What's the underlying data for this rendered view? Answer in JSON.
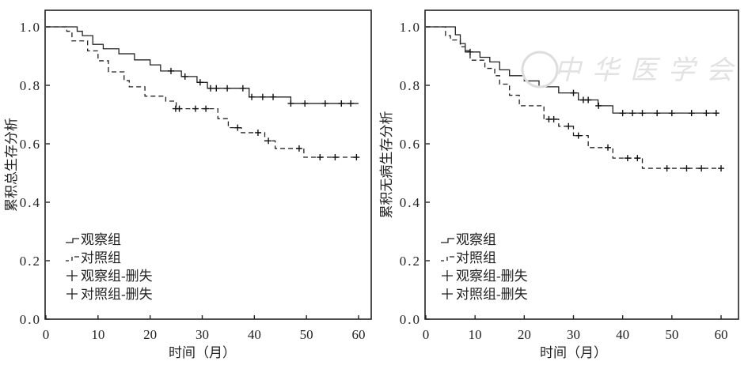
{
  "watermark": "中华医学会",
  "chart_data": [
    {
      "type": "line",
      "subtype": "kaplan-meier",
      "title": "",
      "xlabel": "时间（月）",
      "ylabel": "累积总生存分析",
      "xlim": [
        0,
        60
      ],
      "ylim": [
        0,
        1.0
      ],
      "xticks": [
        "0",
        "10",
        "20",
        "30",
        "40",
        "50",
        "60"
      ],
      "yticks": [
        "0.0",
        "0.2",
        "0.4",
        "0.6",
        "0.8",
        "1.0"
      ],
      "grid": false,
      "legend_position": "bottom-left",
      "legend": [
        "观察组",
        "对照组",
        "观察组-删失",
        "对照组-删失"
      ],
      "series": [
        {
          "name": "观察组",
          "style": "solid",
          "end": 60,
          "steps": [
            [
              0,
              1.0
            ],
            [
              6,
              0.985
            ],
            [
              7,
              0.97
            ],
            [
              9,
              0.94
            ],
            [
              11,
              0.925
            ],
            [
              14,
              0.908
            ],
            [
              17,
              0.887
            ],
            [
              20,
              0.87
            ],
            [
              22,
              0.849
            ],
            [
              26,
              0.83
            ],
            [
              29,
              0.81
            ],
            [
              31,
              0.79
            ],
            [
              39,
              0.76
            ],
            [
              47,
              0.738
            ]
          ],
          "censored": [
            [
              24,
              0.849
            ],
            [
              26.7,
              0.83
            ],
            [
              29.6,
              0.81
            ],
            [
              31.6,
              0.79
            ],
            [
              32.7,
              0.79
            ],
            [
              34.8,
              0.79
            ],
            [
              37.8,
              0.79
            ],
            [
              39.5,
              0.76
            ],
            [
              41.6,
              0.76
            ],
            [
              43.6,
              0.76
            ],
            [
              47,
              0.738
            ],
            [
              49.7,
              0.738
            ],
            [
              53.6,
              0.738
            ],
            [
              56.7,
              0.738
            ],
            [
              58.5,
              0.738
            ]
          ]
        },
        {
          "name": "对照组",
          "style": "dashed",
          "end": 60,
          "steps": [
            [
              0,
              1.0
            ],
            [
              4,
              0.985
            ],
            [
              5,
              0.952
            ],
            [
              8,
              0.918
            ],
            [
              10,
              0.884
            ],
            [
              12,
              0.846
            ],
            [
              15,
              0.816
            ],
            [
              16,
              0.795
            ],
            [
              19,
              0.763
            ],
            [
              23,
              0.746
            ],
            [
              25,
              0.72
            ],
            [
              33,
              0.686
            ],
            [
              35,
              0.655
            ],
            [
              37.5,
              0.638
            ],
            [
              42,
              0.61
            ],
            [
              44,
              0.584
            ],
            [
              49.5,
              0.554
            ]
          ],
          "censored": [
            [
              24.9,
              0.72
            ],
            [
              25.6,
              0.72
            ],
            [
              28.7,
              0.72
            ],
            [
              30.7,
              0.72
            ],
            [
              36.8,
              0.655
            ],
            [
              40.7,
              0.638
            ],
            [
              42.7,
              0.61
            ],
            [
              48.6,
              0.584
            ],
            [
              52.6,
              0.554
            ],
            [
              55.5,
              0.554
            ],
            [
              59.6,
              0.554
            ]
          ]
        }
      ]
    },
    {
      "type": "line",
      "subtype": "kaplan-meier",
      "title": "",
      "xlabel": "时间（月）",
      "ylabel": "累积无病生存分析",
      "xlim": [
        0,
        60
      ],
      "ylim": [
        0,
        1.0
      ],
      "xticks": [
        "0",
        "10",
        "20",
        "30",
        "40",
        "50",
        "60"
      ],
      "yticks": [
        "0.0",
        "0.2",
        "0.4",
        "0.6",
        "0.8",
        "1.0"
      ],
      "grid": false,
      "legend_position": "bottom-left",
      "legend": [
        "观察组",
        "对照组",
        "观察组-删失",
        "对照组-删失"
      ],
      "series": [
        {
          "name": "观察组",
          "style": "solid",
          "end": 59.5,
          "steps": [
            [
              0,
              1.0
            ],
            [
              6,
              0.973
            ],
            [
              7,
              0.943
            ],
            [
              8,
              0.914
            ],
            [
              11,
              0.896
            ],
            [
              13,
              0.88
            ],
            [
              15,
              0.853
            ],
            [
              17,
              0.833
            ],
            [
              20,
              0.815
            ],
            [
              23,
              0.795
            ],
            [
              27,
              0.774
            ],
            [
              31,
              0.75
            ],
            [
              35,
              0.73
            ],
            [
              38,
              0.705
            ]
          ],
          "censored": [
            [
              9,
              0.914
            ],
            [
              30,
              0.774
            ],
            [
              32,
              0.75
            ],
            [
              33,
              0.75
            ],
            [
              35.1,
              0.73
            ],
            [
              40,
              0.705
            ],
            [
              42,
              0.705
            ],
            [
              44,
              0.705
            ],
            [
              47,
              0.705
            ],
            [
              50,
              0.705
            ],
            [
              54,
              0.705
            ],
            [
              57,
              0.705
            ],
            [
              59,
              0.705
            ]
          ]
        },
        {
          "name": "对照组",
          "style": "dashed",
          "end": 60,
          "steps": [
            [
              0,
              1.0
            ],
            [
              4,
              0.97
            ],
            [
              5,
              0.955
            ],
            [
              7,
              0.932
            ],
            [
              8,
              0.919
            ],
            [
              9,
              0.886
            ],
            [
              12,
              0.858
            ],
            [
              14,
              0.833
            ],
            [
              15,
              0.804
            ],
            [
              17,
              0.766
            ],
            [
              19,
              0.73
            ],
            [
              24,
              0.684
            ],
            [
              27,
              0.66
            ],
            [
              30,
              0.628
            ],
            [
              33,
              0.587
            ],
            [
              38,
              0.551
            ],
            [
              44,
              0.516
            ]
          ],
          "censored": [
            [
              25,
              0.684
            ],
            [
              26,
              0.684
            ],
            [
              29,
              0.66
            ],
            [
              31,
              0.628
            ],
            [
              37,
              0.587
            ],
            [
              41,
              0.551
            ],
            [
              43,
              0.551
            ],
            [
              49,
              0.516
            ],
            [
              53,
              0.516
            ],
            [
              56,
              0.516
            ],
            [
              60,
              0.516
            ]
          ]
        }
      ]
    }
  ]
}
